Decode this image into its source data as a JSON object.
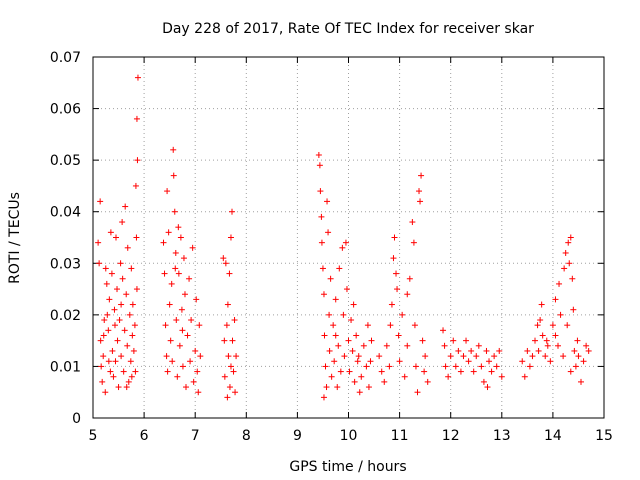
{
  "chart_data": {
    "type": "scatter",
    "title": "Day 228 of 2017, Rate Of TEC Index for receiver skar",
    "xlabel": "GPS time / hours",
    "ylabel": "ROTI / TECUs",
    "xlim": [
      5,
      15
    ],
    "ylim": [
      0,
      0.07
    ],
    "x_ticks": [
      "5",
      "6",
      "7",
      "8",
      "9",
      "10",
      "11",
      "12",
      "13",
      "14",
      "15"
    ],
    "y_ticks": [
      "0",
      "0.01",
      "0.02",
      "0.03",
      "0.04",
      "0.05",
      "0.06",
      "0.07"
    ],
    "grid": true,
    "marker": "+",
    "color": "#ff0000",
    "series": [
      {
        "points": [
          [
            5.1,
            0.034
          ],
          [
            5.12,
            0.03
          ],
          [
            5.14,
            0.042
          ],
          [
            5.15,
            0.015
          ],
          [
            5.16,
            0.01
          ],
          [
            5.18,
            0.007
          ],
          [
            5.2,
            0.012
          ],
          [
            5.22,
            0.019
          ],
          [
            5.24,
            0.005
          ],
          [
            5.25,
            0.029
          ],
          [
            5.27,
            0.026
          ],
          [
            5.28,
            0.02
          ],
          [
            5.3,
            0.017
          ],
          [
            5.32,
            0.023
          ],
          [
            5.34,
            0.009
          ],
          [
            5.35,
            0.036
          ],
          [
            5.37,
            0.028
          ],
          [
            5.38,
            0.013
          ],
          [
            5.4,
            0.008
          ],
          [
            5.42,
            0.021
          ],
          [
            5.44,
            0.011
          ],
          [
            5.45,
            0.035
          ],
          [
            5.47,
            0.025
          ],
          [
            5.48,
            0.015
          ],
          [
            5.5,
            0.006
          ],
          [
            5.52,
            0.019
          ],
          [
            5.54,
            0.03
          ],
          [
            5.55,
            0.012
          ],
          [
            5.57,
            0.038
          ],
          [
            5.58,
            0.027
          ],
          [
            5.6,
            0.009
          ],
          [
            5.62,
            0.017
          ],
          [
            5.63,
            0.041
          ],
          [
            5.65,
            0.024
          ],
          [
            5.67,
            0.014
          ],
          [
            5.68,
            0.033
          ],
          [
            5.7,
            0.007
          ],
          [
            5.72,
            0.02
          ],
          [
            5.74,
            0.011
          ],
          [
            5.75,
            0.029
          ],
          [
            5.77,
            0.016
          ],
          [
            5.78,
            0.022
          ],
          [
            5.8,
            0.013
          ],
          [
            5.82,
            0.018
          ],
          [
            5.84,
            0.045
          ],
          [
            5.85,
            0.035
          ],
          [
            5.86,
            0.058
          ],
          [
            5.87,
            0.05
          ],
          [
            5.88,
            0.066
          ],
          [
            5.86,
            0.025
          ],
          [
            5.83,
            0.009
          ],
          [
            5.66,
            0.006
          ],
          [
            5.43,
            0.018
          ],
          [
            5.31,
            0.011
          ],
          [
            5.21,
            0.016
          ],
          [
            5.55,
            0.022
          ],
          [
            5.76,
            0.008
          ],
          [
            6.38,
            0.034
          ],
          [
            6.4,
            0.028
          ],
          [
            6.42,
            0.018
          ],
          [
            6.44,
            0.012
          ],
          [
            6.46,
            0.009
          ],
          [
            6.48,
            0.036
          ],
          [
            6.5,
            0.022
          ],
          [
            6.52,
            0.015
          ],
          [
            6.54,
            0.026
          ],
          [
            6.55,
            0.011
          ],
          [
            6.57,
            0.052
          ],
          [
            6.58,
            0.047
          ],
          [
            6.6,
            0.04
          ],
          [
            6.62,
            0.032
          ],
          [
            6.63,
            0.019
          ],
          [
            6.65,
            0.008
          ],
          [
            6.67,
            0.037
          ],
          [
            6.68,
            0.028
          ],
          [
            6.7,
            0.014
          ],
          [
            6.72,
            0.035
          ],
          [
            6.74,
            0.021
          ],
          [
            6.76,
            0.01
          ],
          [
            6.78,
            0.031
          ],
          [
            6.8,
            0.024
          ],
          [
            6.82,
            0.006
          ],
          [
            6.85,
            0.016
          ],
          [
            6.88,
            0.027
          ],
          [
            6.9,
            0.011
          ],
          [
            6.92,
            0.019
          ],
          [
            6.95,
            0.033
          ],
          [
            6.97,
            0.007
          ],
          [
            7.0,
            0.013
          ],
          [
            7.02,
            0.023
          ],
          [
            7.04,
            0.009
          ],
          [
            7.06,
            0.005
          ],
          [
            7.08,
            0.018
          ],
          [
            7.1,
            0.012
          ],
          [
            6.45,
            0.044
          ],
          [
            6.61,
            0.029
          ],
          [
            6.75,
            0.017
          ],
          [
            7.55,
            0.031
          ],
          [
            7.57,
            0.015
          ],
          [
            7.58,
            0.008
          ],
          [
            7.6,
            0.03
          ],
          [
            7.62,
            0.018
          ],
          [
            7.63,
            0.004
          ],
          [
            7.65,
            0.012
          ],
          [
            7.67,
            0.028
          ],
          [
            7.68,
            0.006
          ],
          [
            7.7,
            0.01
          ],
          [
            7.72,
            0.04
          ],
          [
            7.73,
            0.015
          ],
          [
            7.75,
            0.009
          ],
          [
            7.77,
            0.019
          ],
          [
            7.78,
            0.005
          ],
          [
            7.8,
            0.012
          ],
          [
            7.64,
            0.022
          ],
          [
            7.7,
            0.035
          ],
          [
            9.42,
            0.051
          ],
          [
            9.44,
            0.049
          ],
          [
            9.45,
            0.044
          ],
          [
            9.47,
            0.039
          ],
          [
            9.48,
            0.034
          ],
          [
            9.5,
            0.029
          ],
          [
            9.52,
            0.024
          ],
          [
            9.53,
            0.016
          ],
          [
            9.55,
            0.01
          ],
          [
            9.57,
            0.006
          ],
          [
            9.58,
            0.042
          ],
          [
            9.6,
            0.036
          ],
          [
            9.62,
            0.02
          ],
          [
            9.63,
            0.013
          ],
          [
            9.65,
            0.027
          ],
          [
            9.67,
            0.008
          ],
          [
            9.7,
            0.018
          ],
          [
            9.72,
            0.011
          ],
          [
            9.75,
            0.023
          ],
          [
            9.78,
            0.006
          ],
          [
            9.8,
            0.014
          ],
          [
            9.82,
            0.029
          ],
          [
            9.85,
            0.009
          ],
          [
            9.88,
            0.033
          ],
          [
            9.9,
            0.02
          ],
          [
            9.92,
            0.012
          ],
          [
            9.95,
            0.034
          ],
          [
            9.97,
            0.025
          ],
          [
            10.0,
            0.015
          ],
          [
            10.02,
            0.009
          ],
          [
            10.05,
            0.019
          ],
          [
            10.08,
            0.013
          ],
          [
            10.1,
            0.022
          ],
          [
            10.12,
            0.007
          ],
          [
            10.15,
            0.016
          ],
          [
            10.18,
            0.011
          ],
          [
            10.2,
            0.012
          ],
          [
            10.25,
            0.008
          ],
          [
            10.3,
            0.014
          ],
          [
            10.35,
            0.01
          ],
          [
            10.38,
            0.018
          ],
          [
            10.4,
            0.006
          ],
          [
            10.43,
            0.011
          ],
          [
            10.45,
            0.015
          ],
          [
            9.52,
            0.004
          ],
          [
            9.75,
            0.016
          ],
          [
            10.22,
            0.005
          ],
          [
            10.6,
            0.012
          ],
          [
            10.65,
            0.009
          ],
          [
            10.7,
            0.007
          ],
          [
            10.75,
            0.014
          ],
          [
            10.8,
            0.01
          ],
          [
            10.82,
            0.018
          ],
          [
            10.85,
            0.022
          ],
          [
            10.88,
            0.031
          ],
          [
            10.9,
            0.035
          ],
          [
            10.93,
            0.028
          ],
          [
            10.95,
            0.025
          ],
          [
            10.98,
            0.016
          ],
          [
            11.0,
            0.011
          ],
          [
            11.05,
            0.02
          ],
          [
            11.1,
            0.008
          ],
          [
            11.15,
            0.014
          ],
          [
            11.2,
            0.027
          ],
          [
            11.25,
            0.038
          ],
          [
            11.28,
            0.034
          ],
          [
            11.3,
            0.018
          ],
          [
            11.32,
            0.01
          ],
          [
            11.35,
            0.005
          ],
          [
            11.38,
            0.044
          ],
          [
            11.4,
            0.042
          ],
          [
            11.42,
            0.047
          ],
          [
            11.45,
            0.015
          ],
          [
            11.48,
            0.009
          ],
          [
            11.5,
            0.012
          ],
          [
            11.55,
            0.007
          ],
          [
            11.15,
            0.024
          ],
          [
            11.85,
            0.017
          ],
          [
            11.88,
            0.014
          ],
          [
            11.9,
            0.01
          ],
          [
            11.95,
            0.008
          ],
          [
            12.0,
            0.012
          ],
          [
            12.05,
            0.015
          ],
          [
            12.1,
            0.01
          ],
          [
            12.15,
            0.013
          ],
          [
            12.2,
            0.009
          ],
          [
            12.25,
            0.012
          ],
          [
            12.3,
            0.015
          ],
          [
            12.35,
            0.011
          ],
          [
            12.4,
            0.013
          ],
          [
            12.45,
            0.009
          ],
          [
            12.5,
            0.012
          ],
          [
            12.55,
            0.014
          ],
          [
            12.6,
            0.01
          ],
          [
            12.65,
            0.007
          ],
          [
            12.7,
            0.013
          ],
          [
            12.75,
            0.011
          ],
          [
            12.8,
            0.009
          ],
          [
            12.85,
            0.012
          ],
          [
            12.9,
            0.01
          ],
          [
            12.95,
            0.013
          ],
          [
            13.0,
            0.008
          ],
          [
            12.72,
            0.006
          ],
          [
            13.4,
            0.011
          ],
          [
            13.45,
            0.008
          ],
          [
            13.5,
            0.013
          ],
          [
            13.55,
            0.01
          ],
          [
            13.6,
            0.012
          ],
          [
            13.65,
            0.015
          ],
          [
            13.7,
            0.018
          ],
          [
            13.72,
            0.013
          ],
          [
            13.75,
            0.019
          ],
          [
            13.78,
            0.022
          ],
          [
            13.8,
            0.016
          ],
          [
            13.85,
            0.012
          ],
          [
            13.88,
            0.015
          ],
          [
            13.9,
            0.014
          ],
          [
            13.95,
            0.011
          ],
          [
            14.0,
            0.018
          ],
          [
            14.05,
            0.023
          ],
          [
            14.1,
            0.014
          ],
          [
            14.12,
            0.026
          ],
          [
            14.15,
            0.02
          ],
          [
            14.2,
            0.012
          ],
          [
            14.22,
            0.029
          ],
          [
            14.25,
            0.032
          ],
          [
            14.28,
            0.018
          ],
          [
            14.3,
            0.034
          ],
          [
            14.32,
            0.03
          ],
          [
            14.35,
            0.035
          ],
          [
            14.38,
            0.027
          ],
          [
            14.4,
            0.021
          ],
          [
            14.42,
            0.013
          ],
          [
            14.45,
            0.01
          ],
          [
            14.48,
            0.015
          ],
          [
            14.5,
            0.012
          ],
          [
            14.55,
            0.007
          ],
          [
            14.6,
            0.011
          ],
          [
            14.65,
            0.014
          ],
          [
            14.7,
            0.013
          ],
          [
            14.35,
            0.009
          ],
          [
            14.05,
            0.016
          ]
        ]
      }
    ]
  }
}
